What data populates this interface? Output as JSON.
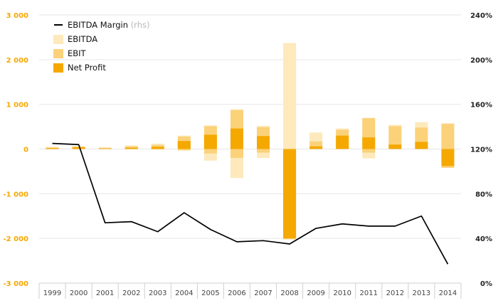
{
  "chart_data": {
    "type": "bar",
    "categories": [
      "1999",
      "2000",
      "2001",
      "2002",
      "2003",
      "2004",
      "2005",
      "2006",
      "2007",
      "2008",
      "2009",
      "2010",
      "2011",
      "2012",
      "2013",
      "2014"
    ],
    "series": [
      {
        "name": "EBITDA",
        "kind": "bar",
        "color": "#fde9bc",
        "values": [
          50,
          70,
          40,
          80,
          120,
          300,
          530,
          890,
          520,
          2370,
          370,
          460,
          700,
          540,
          600,
          580
        ]
      },
      {
        "name": "EBIT",
        "kind": "bar",
        "color": "#fbd27a",
        "values": [
          30,
          50,
          25,
          60,
          90,
          280,
          510,
          870,
          490,
          -2020,
          170,
          430,
          690,
          510,
          480,
          560
        ]
      },
      {
        "name": "Net Profit",
        "kind": "bar",
        "color": "#f5a800",
        "values": [
          20,
          40,
          10,
          30,
          50,
          180,
          320,
          460,
          290,
          -2000,
          60,
          300,
          260,
          100,
          160,
          -380
        ]
      },
      {
        "name": "EBITDA Margin",
        "name_suffix": "(rhs)",
        "kind": "line",
        "axis": "right",
        "color": "#000000",
        "values": [
          125,
          124,
          54,
          55,
          46,
          63,
          48,
          37,
          38,
          35,
          49,
          53,
          51,
          51,
          60,
          17
        ]
      }
    ],
    "negative_bars": {
      "EBITDA": [
        0,
        0,
        0,
        0,
        -10,
        -40,
        -260,
        -650,
        -200,
        0,
        0,
        0,
        -210,
        0,
        0,
        -420
      ],
      "EBIT": [
        0,
        0,
        0,
        0,
        -5,
        -20,
        -100,
        -200,
        -80,
        -2070,
        0,
        0,
        -80,
        0,
        0,
        -420
      ]
    },
    "y_left": {
      "min": -3000,
      "max": 3000,
      "ticks": [
        -3000,
        -2000,
        -1000,
        0,
        1000,
        2000,
        3000
      ],
      "tick_labels": [
        "-3 000",
        "-2 000",
        "-1 000",
        "0",
        "1 000",
        "2 000",
        "3 000"
      ]
    },
    "y_right": {
      "min": 0,
      "max": 240,
      "ticks": [
        0,
        40,
        80,
        120,
        160,
        200,
        240
      ],
      "tick_labels": [
        "0%",
        "40%",
        "80%",
        "120%",
        "160%",
        "200%",
        "240%"
      ]
    },
    "legend": {
      "position": "top-left",
      "entries": [
        {
          "label": "EBITDA Margin",
          "suffix": "(rhs)",
          "kind": "line",
          "color": "#000000"
        },
        {
          "label": "EBITDA",
          "kind": "bar",
          "color": "#fde9bc"
        },
        {
          "label": "EBIT",
          "kind": "bar",
          "color": "#fbd27a"
        },
        {
          "label": "Net Profit",
          "kind": "bar",
          "color": "#f5a800"
        }
      ]
    },
    "grid": true,
    "colors": {
      "left_axis": "#f5a800",
      "right_axis": "#222222",
      "grid": "#e6e6e6"
    }
  }
}
